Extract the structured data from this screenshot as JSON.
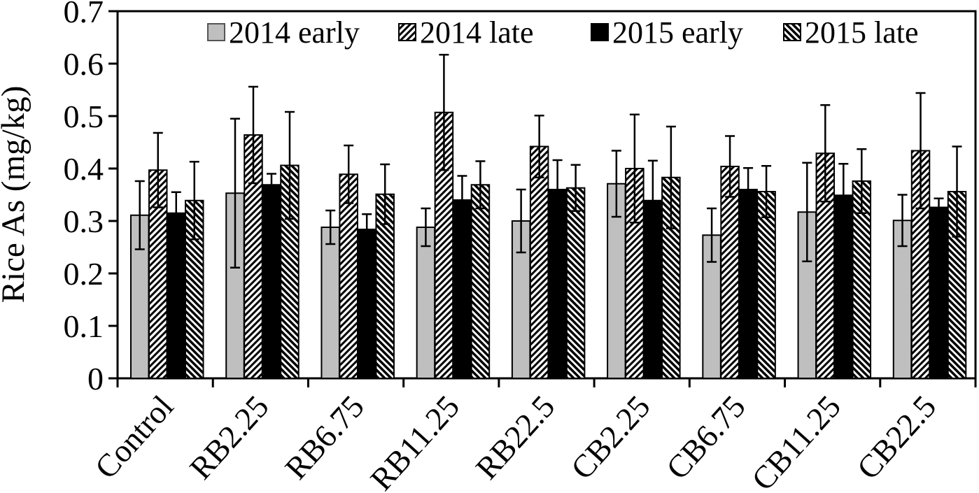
{
  "chart_data": {
    "type": "bar",
    "title": "",
    "ylabel": "Rice As (mg/kg)",
    "xlabel": "",
    "ylim": [
      0,
      0.7
    ],
    "ytick_values": [
      0,
      0.1,
      0.2,
      0.3,
      0.4,
      0.5,
      0.6,
      0.7
    ],
    "ytick_labels": [
      "0",
      "0.1",
      "0.2",
      "0.3",
      "0.4",
      "0.5",
      "0.6",
      "0.7"
    ],
    "grid": false,
    "legend_position": "top-inside",
    "error_bars": true,
    "categories": [
      "Control",
      "RB2.25",
      "RB6.75",
      "RB11.25",
      "RB22.5",
      "CB2.25",
      "CB6.75",
      "CB11.25",
      "CB22.5"
    ],
    "series": [
      {
        "name": "2014 early",
        "style": "solid-gray",
        "values": [
          0.311,
          0.353,
          0.288,
          0.288,
          0.3,
          0.371,
          0.273,
          0.317,
          0.301
        ],
        "errors": [
          0.065,
          0.142,
          0.032,
          0.036,
          0.06,
          0.063,
          0.051,
          0.094,
          0.049
        ]
      },
      {
        "name": "2014 late",
        "style": "hatch-forward",
        "values": [
          0.397,
          0.464,
          0.389,
          0.507,
          0.442,
          0.4,
          0.404,
          0.429,
          0.434
        ],
        "errors": [
          0.071,
          0.092,
          0.055,
          0.11,
          0.059,
          0.103,
          0.058,
          0.092,
          0.11
        ]
      },
      {
        "name": "2015 early",
        "style": "solid-black",
        "values": [
          0.315,
          0.369,
          0.284,
          0.34,
          0.36,
          0.339,
          0.36,
          0.349,
          0.326
        ],
        "errors": [
          0.04,
          0.021,
          0.029,
          0.046,
          0.056,
          0.076,
          0.041,
          0.06,
          0.017
        ]
      },
      {
        "name": "2015 late",
        "style": "hatch-backward",
        "values": [
          0.339,
          0.406,
          0.351,
          0.369,
          0.363,
          0.383,
          0.356,
          0.376,
          0.356
        ],
        "errors": [
          0.074,
          0.102,
          0.057,
          0.045,
          0.044,
          0.097,
          0.049,
          0.061,
          0.086
        ]
      }
    ],
    "colors": {
      "bar_gray": "#bfbfbf",
      "bar_black": "#000000",
      "hatch_line": "#000000",
      "axis": "#000000",
      "background": "#ffffff"
    }
  }
}
